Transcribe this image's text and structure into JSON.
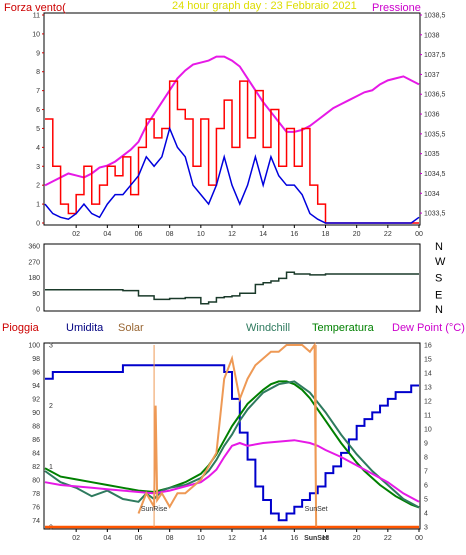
{
  "title": "24 hour graph day : 23 Febbraio 2021",
  "colors": {
    "background": "#ffffff",
    "grid": "#ffffff",
    "panel_border": "#000000",
    "pressure": "#e619e6",
    "wind": "#ff0000",
    "gust": "#0000dd",
    "direction": "#1a3a2a",
    "temperature": "#008000",
    "windchill": "#2e7a5e",
    "dewpoint": "#e619e6",
    "humidity": "#0000cc",
    "solar": "#ee9955",
    "rain": "#ff5500",
    "legend_wind": "#cc0000",
    "legend_pressure": "#cc00cc",
    "legend_title": "#dddd00"
  },
  "chart_data": [
    {
      "type": "line",
      "labels": {
        "left": "Forza vento(",
        "right": "Pressione"
      },
      "x_ticks": [
        "02",
        "04",
        "06",
        "08",
        "10",
        "12",
        "14",
        "16",
        "18",
        "20",
        "22",
        "00"
      ],
      "y_left": {
        "range": [
          0,
          11
        ],
        "ticks": [
          "0",
          "1",
          "2",
          "3",
          "4",
          "5",
          "6",
          "7",
          "8",
          "9",
          "10",
          "11"
        ]
      },
      "y_right": {
        "range": [
          1033.25,
          1038.5
        ],
        "ticks": [
          "1033,5",
          "1034",
          "1034,5",
          "1035",
          "1035,5",
          "1036",
          "1036,5",
          "1037",
          "1037,5",
          "1038",
          "1038,5"
        ]
      },
      "series": [
        {
          "key": "pressure",
          "axis": "right",
          "color": "#e619e6",
          "x": [
            0,
            0.5,
            1,
            1.5,
            2,
            2.5,
            3,
            3.5,
            4,
            4.5,
            5,
            5.5,
            6,
            6.5,
            7,
            7.5,
            8,
            8.5,
            9,
            9.5,
            10,
            10.5,
            11,
            11.5,
            12,
            12.5,
            13,
            13.5,
            14,
            14.5,
            15,
            15.5,
            16,
            16.5,
            17,
            17.5,
            18,
            18.5,
            19,
            19.5,
            20,
            20.5,
            21,
            21.5,
            22,
            22.5,
            23,
            23.5,
            24
          ],
          "y": [
            1034.2,
            1034.3,
            1034.4,
            1034.5,
            1034.45,
            1034.4,
            1034.5,
            1034.65,
            1034.7,
            1034.8,
            1034.95,
            1035.1,
            1035.3,
            1035.7,
            1036.0,
            1036.3,
            1036.6,
            1036.9,
            1037.1,
            1037.25,
            1037.3,
            1037.35,
            1037.45,
            1037.45,
            1037.35,
            1037.2,
            1036.9,
            1036.6,
            1036.3,
            1036.05,
            1035.8,
            1035.55,
            1035.55,
            1035.6,
            1035.7,
            1035.85,
            1036.0,
            1036.15,
            1036.25,
            1036.35,
            1036.45,
            1036.55,
            1036.6,
            1036.75,
            1036.85,
            1036.9,
            1036.95,
            1036.85,
            1036.75
          ]
        },
        {
          "key": "wind",
          "axis": "left",
          "color": "#ff0000",
          "x": [
            0,
            0.5,
            1,
            1.5,
            2,
            2.5,
            3,
            3.5,
            4,
            4.5,
            5,
            5.5,
            6,
            6.5,
            7,
            7.5,
            8,
            8.5,
            9,
            9.5,
            10,
            10.5,
            11,
            11.5,
            12,
            12.5,
            13,
            13.5,
            14,
            14.5,
            15,
            15.5,
            16,
            16.5,
            17,
            17.5,
            18,
            18.5,
            19,
            19.5,
            20,
            20.5,
            21,
            21.5,
            22,
            22.5,
            23,
            23.5,
            24
          ],
          "y": [
            5.5,
            3,
            1,
            0.5,
            1.5,
            3,
            1,
            2,
            3,
            2.5,
            3.5,
            1.5,
            4,
            5.5,
            4.5,
            5,
            7.5,
            6,
            5.5,
            3,
            5.5,
            2,
            5,
            6.5,
            4,
            7.5,
            4.5,
            7,
            4,
            6,
            3,
            5,
            3,
            5,
            2,
            1,
            0,
            0,
            0,
            0,
            0,
            0,
            0,
            0,
            0,
            0,
            0,
            0,
            0
          ]
        },
        {
          "key": "gust",
          "axis": "left",
          "color": "#0000dd",
          "x": [
            0,
            0.5,
            1,
            1.5,
            2,
            2.5,
            3,
            3.5,
            4,
            4.5,
            5,
            5.5,
            6,
            6.5,
            7,
            7.5,
            8,
            8.5,
            9,
            9.5,
            10,
            10.5,
            11,
            11.5,
            12,
            12.5,
            13,
            13.5,
            14,
            14.5,
            15,
            15.5,
            16,
            16.5,
            17,
            17.5,
            18,
            18.5,
            19,
            19.5,
            20,
            20.5,
            21,
            21.5,
            22,
            22.5,
            23,
            23.5,
            24
          ],
          "y": [
            1,
            0.5,
            0.3,
            0.2,
            0.5,
            1,
            0.5,
            0.3,
            1,
            1.5,
            1.5,
            2,
            2.5,
            3.5,
            3,
            3.5,
            5,
            4,
            3.5,
            2,
            1.5,
            1,
            2,
            3.5,
            2,
            1,
            2,
            3.5,
            2,
            3.5,
            2.5,
            2,
            2,
            1.5,
            0.5,
            0.2,
            0,
            0,
            0,
            0,
            0,
            0,
            0,
            0,
            0,
            0,
            0,
            0,
            0.3
          ]
        }
      ]
    },
    {
      "type": "line",
      "y_left": {
        "range": [
          0,
          360
        ],
        "ticks": [
          "0",
          "90",
          "180",
          "270",
          "360"
        ]
      },
      "y_right_labels": [
        "N",
        "W",
        "S",
        "E",
        "N"
      ],
      "series": [
        {
          "key": "direction",
          "color": "#1a3a2a",
          "x": [
            0,
            2,
            4,
            5,
            6,
            7,
            8,
            9,
            9.5,
            10,
            10.5,
            11,
            11.5,
            12,
            12.5,
            13,
            13.5,
            14,
            14.5,
            15,
            15.5,
            16,
            17,
            18,
            20,
            22,
            24
          ],
          "y": [
            110,
            110,
            110,
            105,
            75,
            55,
            60,
            65,
            65,
            30,
            40,
            65,
            70,
            75,
            90,
            90,
            140,
            150,
            160,
            175,
            210,
            200,
            195,
            200,
            200,
            200,
            200
          ]
        }
      ]
    },
    {
      "type": "line",
      "labels": {
        "rain": "Pioggia",
        "humidity": "Umidita",
        "solar": "Solar",
        "windchill": "Windchill",
        "temperature": "Temperatura",
        "dewpoint": "Dew Point (°C)",
        "sunrise": "SunRise",
        "sunset": "SunSet",
        "x_sunset_label": "SunSet"
      },
      "x_ticks": [
        "02",
        "04",
        "06",
        "08",
        "10",
        "12",
        "14",
        "16",
        "18",
        "20",
        "22",
        "00"
      ],
      "y_left": {
        "range": [
          73,
          100
        ],
        "ticks": [
          "74",
          "76",
          "78",
          "80",
          "82",
          "84",
          "86",
          "88",
          "90",
          "92",
          "94",
          "96",
          "98",
          "100"
        ]
      },
      "y_right": {
        "range": [
          3,
          16
        ],
        "ticks": [
          "3",
          "4",
          "5",
          "6",
          "7",
          "8",
          "9",
          "10",
          "11",
          "12",
          "13",
          "14",
          "15",
          "16"
        ]
      },
      "y_rain": {
        "range": [
          0,
          3
        ],
        "ticks": [
          "0",
          "1",
          "2",
          "3"
        ]
      },
      "sunrise_x": 7.0,
      "sunset_x": 17.4,
      "series": [
        {
          "key": "humidity",
          "axis": "left",
          "color": "#0000cc",
          "x": [
            0,
            0.5,
            2,
            4,
            5,
            5.5,
            6,
            7,
            8,
            9,
            10,
            11,
            11.5,
            12,
            12.5,
            13,
            13.5,
            14,
            14.5,
            15,
            15.5,
            16,
            16.5,
            17,
            17.5,
            18,
            18.5,
            19,
            19.5,
            20,
            20.5,
            21,
            21.5,
            22,
            22.5,
            23,
            23.5,
            24
          ],
          "y": [
            95,
            96,
            96,
            96,
            97,
            97,
            97,
            97,
            97,
            97,
            97,
            97,
            96,
            92,
            87,
            83,
            79,
            77,
            75,
            74,
            75,
            76,
            77,
            78,
            79,
            81,
            82,
            84,
            86,
            88,
            89,
            90,
            91,
            92,
            93,
            93,
            94,
            94
          ]
        },
        {
          "key": "temperature",
          "axis": "right",
          "color": "#008000",
          "x": [
            0,
            1,
            2,
            3,
            4,
            5,
            6,
            7,
            8,
            9,
            10,
            10.5,
            11,
            11.5,
            12,
            12.5,
            13,
            13.5,
            14,
            14.5,
            15,
            15.5,
            16,
            16.5,
            17,
            17.5,
            18,
            18.5,
            19,
            19.5,
            20,
            20.5,
            21,
            21.5,
            22,
            22.5,
            23,
            23.5,
            24
          ],
          "y": [
            7.2,
            6.6,
            6.4,
            6.2,
            6.0,
            5.8,
            5.6,
            5.5,
            5.8,
            6.2,
            6.8,
            7.4,
            8.2,
            9.2,
            10.2,
            11.0,
            11.8,
            12.3,
            12.8,
            13.2,
            13.4,
            13.4,
            13.2,
            12.8,
            12.2,
            11.4,
            10.6,
            9.8,
            9.0,
            8.3,
            7.6,
            7.0,
            6.5,
            6.0,
            5.6,
            5.2,
            4.9,
            4.6,
            4.4
          ]
        },
        {
          "key": "windchill",
          "axis": "right",
          "color": "#2e7a5e",
          "x": [
            0,
            1,
            2,
            3,
            4,
            5,
            6,
            6.5,
            7,
            7.5,
            8,
            9,
            10,
            10.5,
            11,
            11.5,
            12,
            12.5,
            13,
            13.5,
            14,
            15,
            16,
            17,
            18,
            19,
            20,
            21,
            22,
            23,
            24
          ],
          "y": [
            7.0,
            6.2,
            5.8,
            5.2,
            5.6,
            5.0,
            4.8,
            5.4,
            5.0,
            5.6,
            5.8,
            6.0,
            6.5,
            7.0,
            7.8,
            8.8,
            9.6,
            10.6,
            11.4,
            12.0,
            12.6,
            13.2,
            13.4,
            12.6,
            11.2,
            9.6,
            8.2,
            7.0,
            6.0,
            5.0,
            4.4
          ]
        },
        {
          "key": "dewpoint",
          "axis": "right",
          "color": "#e619e6",
          "x": [
            0,
            1,
            2,
            3,
            4,
            5,
            6,
            7,
            8,
            9,
            10,
            10.5,
            11,
            11.5,
            12,
            12.5,
            13,
            14,
            15,
            16,
            17,
            17.5,
            18,
            19,
            20,
            21,
            22,
            23,
            24
          ],
          "y": [
            6.2,
            6.0,
            5.9,
            5.8,
            5.7,
            5.6,
            5.5,
            5.4,
            5.6,
            5.9,
            6.2,
            6.6,
            7.1,
            8.0,
            8.8,
            9.0,
            8.8,
            9.0,
            9.1,
            9.2,
            9.0,
            8.8,
            8.5,
            8.0,
            7.4,
            6.8,
            6.2,
            5.4,
            4.8
          ]
        },
        {
          "key": "solar",
          "axis": "left",
          "color": "#ee9955",
          "x": [
            6,
            6.5,
            7,
            7.1,
            7.2,
            7.5,
            8,
            8.5,
            9,
            9.5,
            10,
            10.5,
            11,
            11.5,
            12,
            12.5,
            13,
            13.5,
            14,
            14.5,
            15,
            15.5,
            16,
            16.5,
            17,
            17.3,
            17.4
          ],
          "y": [
            75,
            78,
            76,
            91,
            77,
            78,
            76,
            78,
            78,
            79,
            80,
            82,
            84,
            95,
            98,
            92,
            95,
            97,
            98,
            99,
            99,
            100,
            100,
            100,
            99,
            100,
            73
          ]
        },
        {
          "key": "rain",
          "axis": "rain",
          "color": "#ff5500",
          "x": [
            0,
            24
          ],
          "y": [
            0,
            0
          ]
        }
      ]
    }
  ]
}
